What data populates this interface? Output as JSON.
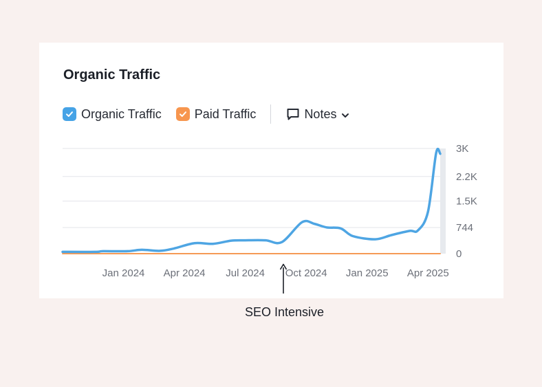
{
  "title": "Organic Traffic",
  "legend": {
    "organic": {
      "label": "Organic Traffic",
      "color": "#4ea5e3"
    },
    "paid": {
      "label": "Paid Traffic",
      "color": "#f59a55"
    },
    "notes_label": "Notes"
  },
  "annotation": "SEO Intensive",
  "chart_data": {
    "type": "line",
    "y_ticks": [
      "0",
      "744",
      "1.5K",
      "2.2K",
      "3K"
    ],
    "y_tick_values": [
      0,
      744,
      1500,
      2200,
      3000
    ],
    "ylim": [
      0,
      3000
    ],
    "x_tick_labels": [
      "Jan 2024",
      "Apr 2024",
      "Jul 2024",
      "Oct 2024",
      "Jan 2025",
      "Apr 2025"
    ],
    "x_tick_months": [
      3,
      6,
      9,
      12,
      15,
      18
    ],
    "xlim": [
      0,
      18.6
    ],
    "grid": true,
    "series": [
      {
        "name": "Organic Traffic",
        "color": "#4ea5e3",
        "x": [
          0,
          1.6,
          2,
          3.2,
          3.9,
          4.8,
          5.5,
          6.5,
          7.4,
          8.3,
          9,
          10,
          10.8,
          11.8,
          12.4,
          13,
          13.7,
          14.3,
          15.4,
          16.2,
          17.1,
          17.5,
          18,
          18.4,
          18.6
        ],
        "y": [
          50,
          50,
          70,
          70,
          110,
          80,
          150,
          300,
          280,
          370,
          380,
          380,
          330,
          900,
          850,
          750,
          720,
          500,
          410,
          530,
          650,
          660,
          1200,
          2870,
          2850
        ]
      },
      {
        "name": "Paid Traffic",
        "color": "#f59a55",
        "x": [
          0,
          18.6
        ],
        "y": [
          0,
          0
        ]
      }
    ]
  }
}
